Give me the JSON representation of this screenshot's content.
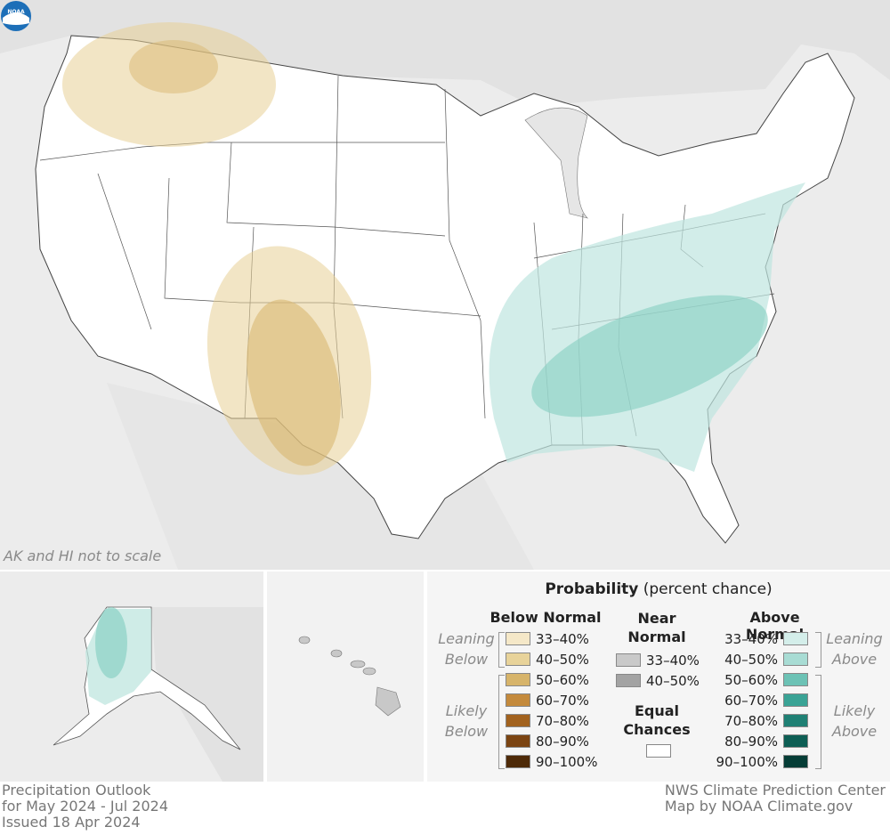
{
  "map": {
    "note": "AK and HI not to scale",
    "logo": "NOAA"
  },
  "legend": {
    "title_bold": "Probability",
    "title_rest": " (percent chance)",
    "below_heading": "Below Normal",
    "near_heading": [
      "Near",
      "Normal"
    ],
    "above_heading": "Above Normal",
    "below_rows": [
      {
        "label": "33–40%",
        "color": "#f5e8c8"
      },
      {
        "label": "40–50%",
        "color": "#e8d39a"
      },
      {
        "label": "50–60%",
        "color": "#d7b46a"
      },
      {
        "label": "60–70%",
        "color": "#c48a3c"
      },
      {
        "label": "70–80%",
        "color": "#a2621e"
      },
      {
        "label": "80–90%",
        "color": "#7b4412"
      },
      {
        "label": "90–100%",
        "color": "#4e2a08"
      }
    ],
    "near_rows": [
      {
        "label": "33–40%",
        "color": "#c9c9c9"
      },
      {
        "label": "40–50%",
        "color": "#a3a3a3"
      }
    ],
    "equal_chances": [
      "Equal",
      "Chances"
    ],
    "above_rows": [
      {
        "label": "33–40%",
        "color": "#d4eeea"
      },
      {
        "label": "40–50%",
        "color": "#a8dcd4"
      },
      {
        "label": "50–60%",
        "color": "#6cc2b5"
      },
      {
        "label": "60–70%",
        "color": "#3aa395"
      },
      {
        "label": "70–80%",
        "color": "#1f8074"
      },
      {
        "label": "80–90%",
        "color": "#0d5e54"
      },
      {
        "label": "90–100%",
        "color": "#053d36"
      }
    ],
    "leaning_below": [
      "Leaning",
      "Below"
    ],
    "likely_below": [
      "Likely",
      "Below"
    ],
    "leaning_above": [
      "Leaning",
      "Above"
    ],
    "likely_above": [
      "Likely",
      "Above"
    ]
  },
  "footer": {
    "left": [
      "Precipitation Outlook",
      "for May 2024 - Jul 2024",
      "Issued 18 Apr 2024"
    ],
    "right": [
      "NWS Climate Prediction Center",
      "Map by NOAA Climate.gov"
    ]
  },
  "colors": {
    "background_land": "#ececec",
    "us_land": "#ffffff",
    "below_lean": "#f5e8c8",
    "below_4050": "#e8d39a",
    "above_lean": "#d4eeea",
    "above_4050": "#a8dcd4"
  }
}
